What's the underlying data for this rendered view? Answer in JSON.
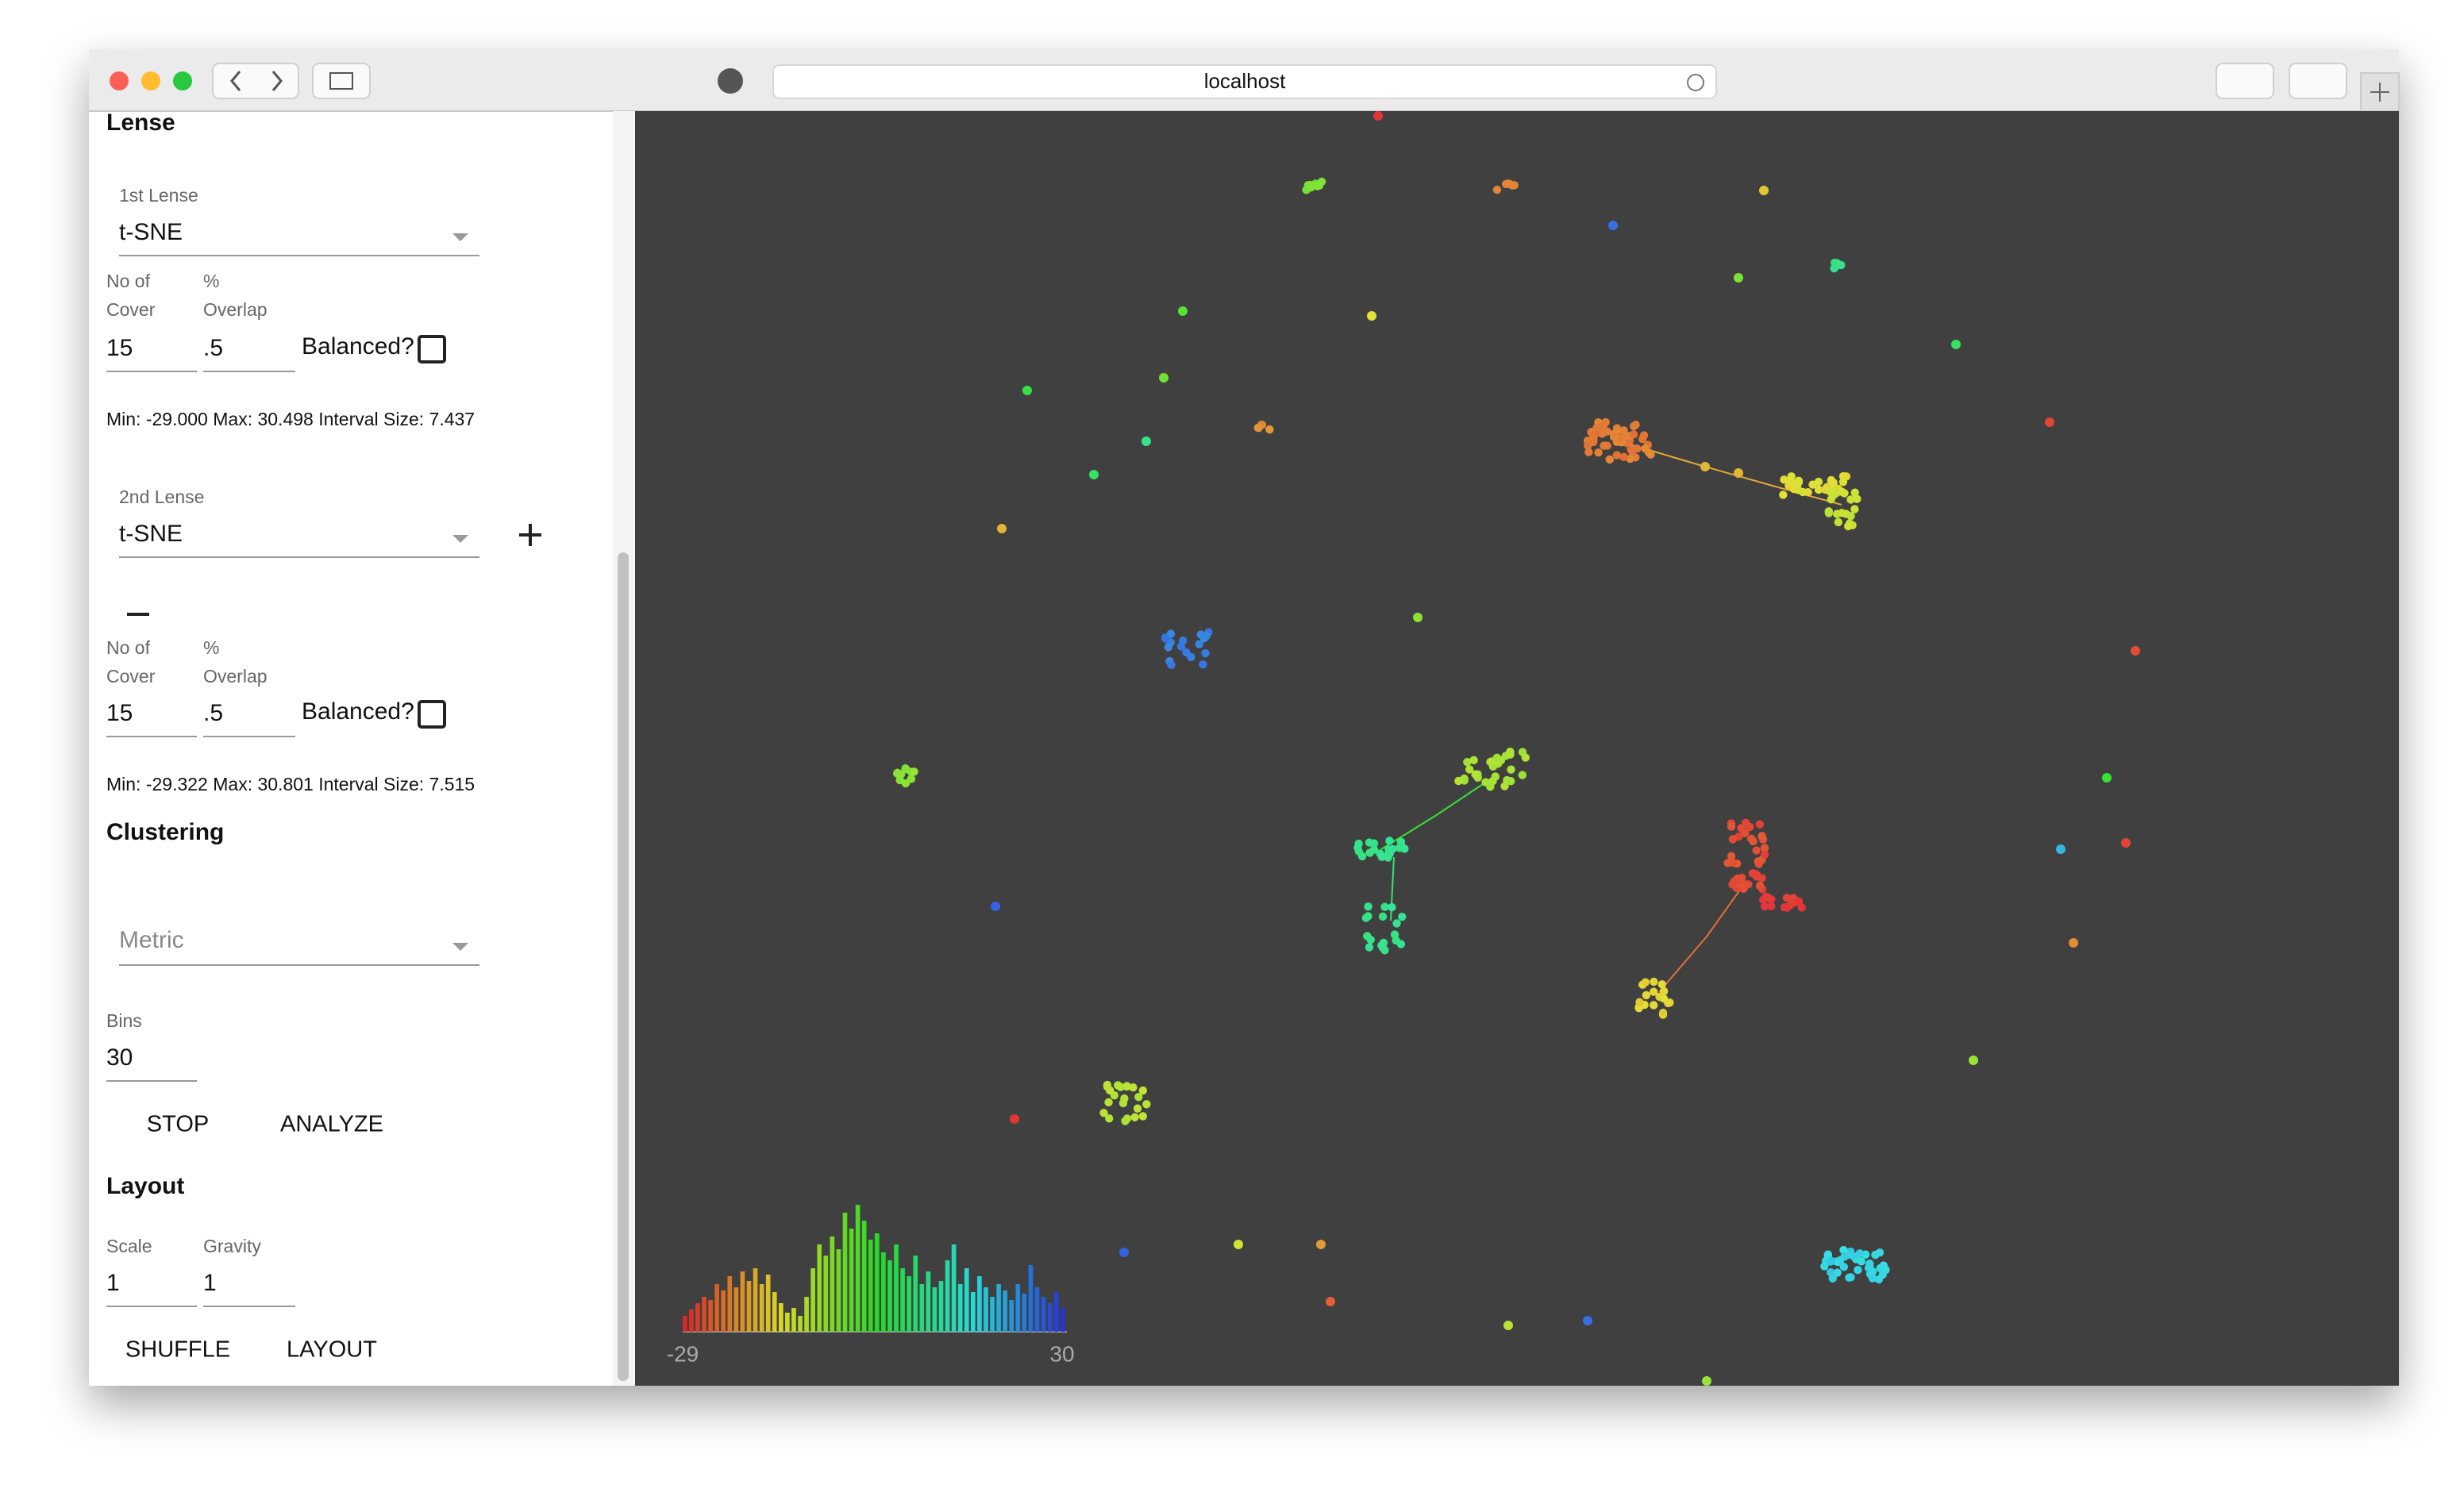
{
  "browser": {
    "url": "localhost"
  },
  "sidebar": {
    "lense_heading": "Lense",
    "lense1": {
      "label": "1st Lense",
      "value": "t-SNE",
      "cover_label": [
        "No of",
        "Cover"
      ],
      "overlap_label": [
        "%",
        "Overlap"
      ],
      "cover": "15",
      "overlap": ".5",
      "balanced": "Balanced?",
      "stats": "Min: -29.000 Max: 30.498 Interval Size: 7.437"
    },
    "lense2": {
      "label": "2nd Lense",
      "value": "t-SNE",
      "cover_label": [
        "No of",
        "Cover"
      ],
      "overlap_label": [
        "%",
        "Overlap"
      ],
      "cover": "15",
      "overlap": ".5",
      "balanced": "Balanced?",
      "stats": "Min: -29.322 Max: 30.801 Interval Size: 7.515"
    },
    "clustering": {
      "heading": "Clustering",
      "metric": "Metric",
      "bins_label": "Bins",
      "bins": "30",
      "buttons": [
        "STOP",
        "ANALYZE"
      ]
    },
    "layout": {
      "heading": "Layout",
      "scale_label": "Scale",
      "gravity_label": "Gravity",
      "scale": "1",
      "gravity": "1",
      "buttons": [
        "SHUFFLE",
        "LAYOUT"
      ]
    }
  },
  "histogram": {
    "xlim": [
      -29,
      30
    ],
    "counts": [
      10,
      14,
      18,
      22,
      20,
      30,
      26,
      35,
      28,
      38,
      32,
      40,
      30,
      36,
      25,
      18,
      12,
      15,
      10,
      22,
      40,
      55,
      48,
      60,
      52,
      75,
      65,
      80,
      70,
      58,
      62,
      50,
      45,
      55,
      40,
      35,
      48,
      30,
      38,
      28,
      32,
      45,
      55,
      30,
      40,
      25,
      35,
      28,
      22,
      30,
      26,
      20,
      30,
      24,
      42,
      28,
      22,
      18,
      25,
      15
    ]
  }
}
